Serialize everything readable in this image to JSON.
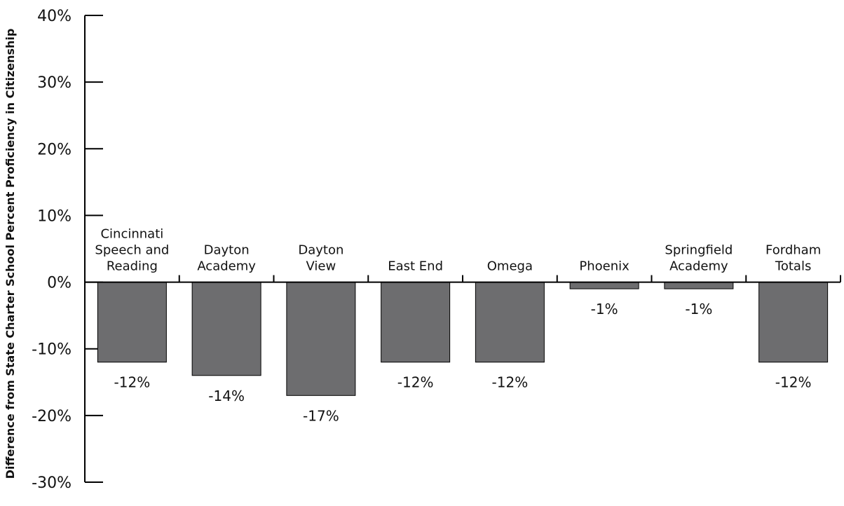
{
  "chart_data": {
    "type": "bar",
    "title": "",
    "xlabel": "",
    "ylabel": "Difference from State Charter School Percent Proficiency in Citizenship",
    "categories": [
      [
        "Cincinnati",
        "Speech and",
        "Reading"
      ],
      [
        "Dayton",
        "Academy"
      ],
      [
        "Dayton",
        "View"
      ],
      [
        "East End"
      ],
      [
        "Omega"
      ],
      [
        "Phoenix"
      ],
      [
        "Springfield",
        "Academy"
      ],
      [
        "Fordham",
        "Totals"
      ]
    ],
    "values": [
      -12,
      -14,
      -17,
      -12,
      -12,
      -1,
      -1,
      -12
    ],
    "data_labels": [
      "-12%",
      "-14%",
      "-17%",
      "-12%",
      "-12%",
      "-1%",
      "-1%",
      "-12%"
    ],
    "ylim": [
      -30,
      40
    ],
    "yticks": [
      40,
      30,
      20,
      10,
      0,
      -10,
      -20,
      -30
    ],
    "ytick_labels": [
      "40%",
      "30%",
      "20%",
      "10%",
      "0%",
      "-10%",
      "-20%",
      "-30%"
    ],
    "grid": false,
    "legend": "none",
    "bar_color": "#6d6d6f",
    "bar_edge_color": "#000000"
  }
}
